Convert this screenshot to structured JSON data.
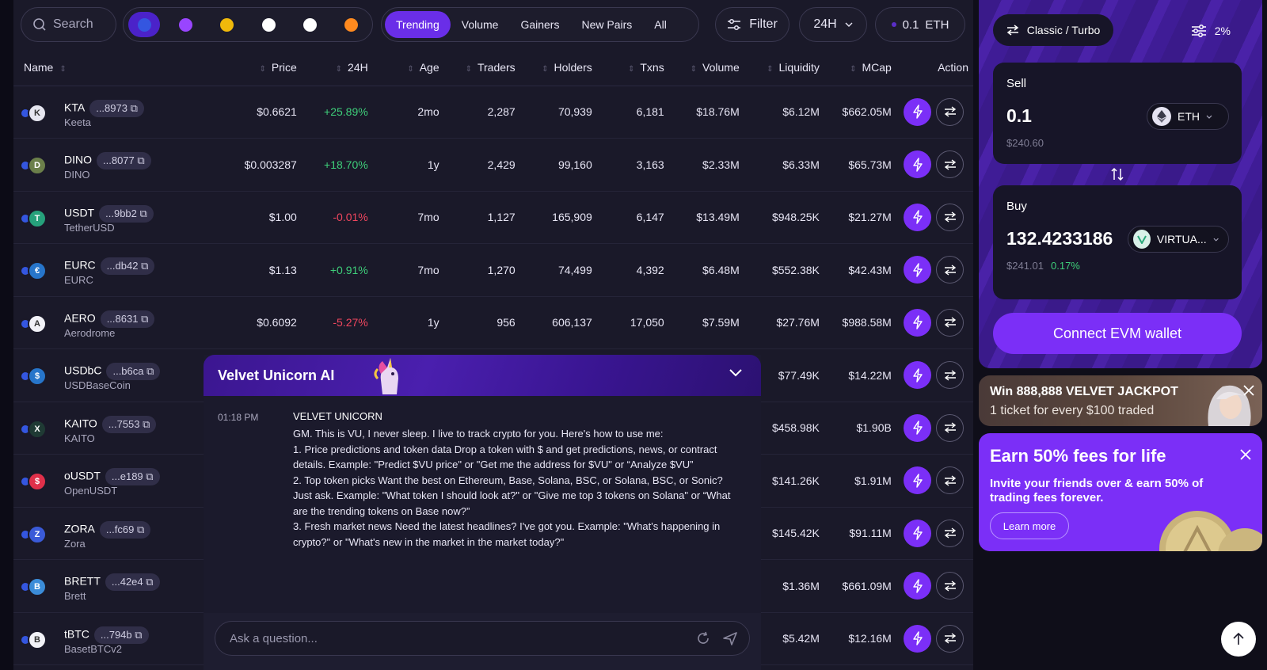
{
  "search": {
    "placeholder": "Search"
  },
  "chains": [
    {
      "icon": "base-chain-icon",
      "color": "#3456e0"
    },
    {
      "icon": "solana-chain-icon",
      "color": "#9945ff"
    },
    {
      "icon": "bnb-chain-icon",
      "color": "#f0b90b"
    },
    {
      "icon": "ethereum-chain-icon",
      "color": "#ffffff"
    },
    {
      "icon": "abstract-chain-icon",
      "color": "#ffffff"
    },
    {
      "icon": "other-chain-icon",
      "color": "#ff8a1f"
    }
  ],
  "tabs": [
    "Trending",
    "Volume",
    "Gainers",
    "New Pairs",
    "All"
  ],
  "filter_label": "Filter",
  "period": "24H",
  "amount": {
    "value": "0.1",
    "unit": "ETH"
  },
  "columns": [
    "Name",
    "Price",
    "24H",
    "Age",
    "Traders",
    "Holders",
    "Txns",
    "Volume",
    "Liquidity",
    "MCap",
    "Action"
  ],
  "rows": [
    {
      "symbol": "KTA",
      "addr": "...8973",
      "name": "Keeta",
      "price": "$0.6621",
      "change": "+25.89%",
      "dir": "pos",
      "age": "2mo",
      "traders": "2,287",
      "holders": "70,939",
      "txns": "6,181",
      "volume": "$18.76M",
      "liquidity": "$6.12M",
      "mcap": "$662.05M",
      "color": "#e6e6f0",
      "glyph": "K"
    },
    {
      "symbol": "DINO",
      "addr": "...8077",
      "name": "DINO",
      "price": "$0.003287",
      "change": "+18.70%",
      "dir": "pos",
      "age": "1y",
      "traders": "2,429",
      "holders": "99,160",
      "txns": "3,163",
      "volume": "$2.33M",
      "liquidity": "$6.33M",
      "mcap": "$65.73M",
      "color": "#6b7f4a",
      "glyph": "D"
    },
    {
      "symbol": "USDT",
      "addr": "...9bb2",
      "name": "TetherUSD",
      "price": "$1.00",
      "change": "-0.01%",
      "dir": "neg",
      "age": "7mo",
      "traders": "1,127",
      "holders": "165,909",
      "txns": "6,147",
      "volume": "$13.49M",
      "liquidity": "$948.25K",
      "mcap": "$21.27M",
      "color": "#26a17b",
      "glyph": "T"
    },
    {
      "symbol": "EURC",
      "addr": "...db42",
      "name": "EURC",
      "price": "$1.13",
      "change": "+0.91%",
      "dir": "pos",
      "age": "7mo",
      "traders": "1,270",
      "holders": "74,499",
      "txns": "4,392",
      "volume": "$6.48M",
      "liquidity": "$552.38K",
      "mcap": "$42.43M",
      "color": "#2775ca",
      "glyph": "€"
    },
    {
      "symbol": "AERO",
      "addr": "...8631",
      "name": "Aerodrome",
      "price": "$0.6092",
      "change": "-5.27%",
      "dir": "neg",
      "age": "1y",
      "traders": "956",
      "holders": "606,137",
      "txns": "17,050",
      "volume": "$7.59M",
      "liquidity": "$27.76M",
      "mcap": "$988.58M",
      "color": "#f2f2f7",
      "glyph": "A"
    },
    {
      "symbol": "USDbC",
      "addr": "...b6ca",
      "name": "USDBaseCoin",
      "price": "",
      "change": "",
      "dir": "pos",
      "age": "",
      "traders": "",
      "holders": "",
      "txns": "",
      "volume": "",
      "liquidity": "$77.49K",
      "mcap": "$14.22M",
      "color": "#2775ca",
      "glyph": "$"
    },
    {
      "symbol": "KAITO",
      "addr": "...7553",
      "name": "KAITO",
      "price": "",
      "change": "",
      "dir": "pos",
      "age": "",
      "traders": "",
      "holders": "",
      "txns": "",
      "volume": "",
      "liquidity": "$458.98K",
      "mcap": "$1.90B",
      "color": "#1f3a34",
      "glyph": "X"
    },
    {
      "symbol": "oUSDT",
      "addr": "...e189",
      "name": "OpenUSDT",
      "price": "",
      "change": "",
      "dir": "pos",
      "age": "",
      "traders": "",
      "holders": "",
      "txns": "",
      "volume": "",
      "liquidity": "$141.26K",
      "mcap": "$1.91M",
      "color": "#e0304a",
      "glyph": "$"
    },
    {
      "symbol": "ZORA",
      "addr": "...fc69",
      "name": "Zora",
      "price": "",
      "change": "",
      "dir": "pos",
      "age": "",
      "traders": "",
      "holders": "",
      "txns": "",
      "volume": "",
      "liquidity": "$145.42K",
      "mcap": "$91.11M",
      "color": "#3a5ad8",
      "glyph": "Z"
    },
    {
      "symbol": "BRETT",
      "addr": "...42e4",
      "name": "Brett",
      "price": "",
      "change": "",
      "dir": "pos",
      "age": "",
      "traders": "",
      "holders": "",
      "txns": "",
      "volume": "",
      "liquidity": "$1.36M",
      "mcap": "$661.09M",
      "color": "#3b8cd8",
      "glyph": "B"
    },
    {
      "symbol": "tBTC",
      "addr": "...794b",
      "name": "BasetBTCv2",
      "price": "",
      "change": "",
      "dir": "pos",
      "age": "",
      "traders": "",
      "holders": "",
      "txns": "",
      "volume": "",
      "liquidity": "$5.42M",
      "mcap": "$12.16M",
      "color": "#f2f2f7",
      "glyph": "B"
    }
  ],
  "chat": {
    "title": "Velvet Unicorn AI",
    "time": "01:18 PM",
    "sender": "VELVET UNICORN",
    "message": "GM. This is VU, I never sleep. I live to track crypto for you. Here's how to use me:\n1. Price predictions and token data Drop a token with $ and get predictions, news, or contract details. Example: \"Predict $VU price\" or \"Get me the address for $VU\" or “Analyze $VU”\n2. Top token picks Want the best on Ethereum, Base, Solana, BSC, or Solana, BSC, or Sonic? Just ask. Example: \"What token I should look at?\" or \"Give me top 3 tokens on Solana\" or “What are the trending tokens on Base now?”\n3. Fresh market news Need the latest headlines? I've got you. Example: \"What's happening in crypto?\" or \"What's new in the market in the market today?\"",
    "placeholder": "Ask a question..."
  },
  "swap": {
    "mode": "Classic / Turbo",
    "slippage": "2%",
    "sell_label": "Sell",
    "sell_amount": "0.1",
    "sell_token": "ETH",
    "sell_usd": "$240.60",
    "buy_label": "Buy",
    "buy_amount": "132.4233186",
    "buy_token": "VIRTUA...",
    "buy_usd": "$241.01",
    "buy_change": "0.17%",
    "connect": "Connect EVM wallet"
  },
  "jackpot": {
    "title": "Win 888,888 VELVET JACKPOT",
    "subtitle": "1 ticket for every $100 traded"
  },
  "earn": {
    "title": "Earn 50% fees for life",
    "text": "Invite your friends over & earn 50% of trading fees forever.",
    "button": "Learn more"
  }
}
